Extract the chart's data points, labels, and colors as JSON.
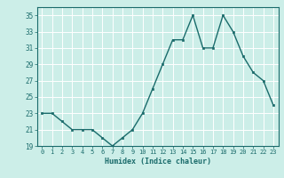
{
  "x": [
    0,
    1,
    2,
    3,
    4,
    5,
    6,
    7,
    8,
    9,
    10,
    11,
    12,
    13,
    14,
    15,
    16,
    17,
    18,
    19,
    20,
    21,
    22,
    23
  ],
  "y": [
    23,
    23,
    22,
    21,
    21,
    21,
    20,
    19,
    20,
    21,
    23,
    26,
    29,
    32,
    32,
    35,
    31,
    31,
    35,
    33,
    30,
    28,
    27,
    24
  ],
  "xlabel": "Humidex (Indice chaleur)",
  "ylim": [
    19,
    36
  ],
  "xlim": [
    -0.5,
    23.5
  ],
  "yticks": [
    19,
    21,
    23,
    25,
    27,
    29,
    31,
    33,
    35
  ],
  "xticks": [
    0,
    1,
    2,
    3,
    4,
    5,
    6,
    7,
    8,
    9,
    10,
    11,
    12,
    13,
    14,
    15,
    16,
    17,
    18,
    19,
    20,
    21,
    22,
    23
  ],
  "line_color": "#1a6b6b",
  "marker_color": "#1a6b6b",
  "bg_color": "#cceee8",
  "grid_color": "#ffffff",
  "label_color": "#1a6b6b",
  "tick_color": "#1a6b6b",
  "spine_color": "#1a6b6b"
}
